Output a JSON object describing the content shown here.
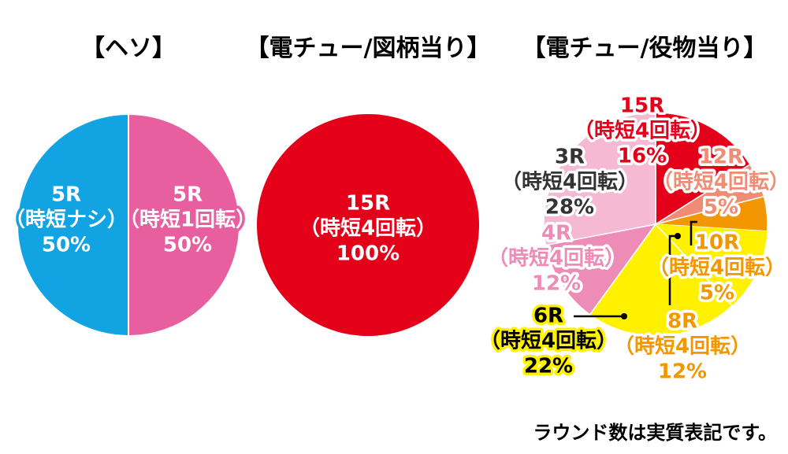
{
  "titles": {
    "heso": "【ヘソ】",
    "denchu_zugara": "【電チュー/図柄当り】",
    "denchu_yakumono": "【電チュー/役物当り】"
  },
  "footnote": "ラウンド数は実質表記です。",
  "colors": {
    "blue": "#12a3e3",
    "pink": "#e85fa0",
    "red": "#e5001a",
    "salmon": "#f08c74",
    "orange": "#f39700",
    "yellow": "#fff100",
    "light_pink": "#f5b9d3",
    "mid_pink": "#ec8cb7"
  },
  "chart_data": [
    {
      "type": "pie",
      "title": "【ヘソ】",
      "slices": [
        {
          "label": "5R",
          "sub": "（時短ナシ）",
          "pct": "50%",
          "value": 50,
          "color": "blue"
        },
        {
          "label": "5R",
          "sub": "（時短1回転）",
          "pct": "50%",
          "value": 50,
          "color": "pink"
        }
      ]
    },
    {
      "type": "pie",
      "title": "【電チュー/図柄当り】",
      "slices": [
        {
          "label": "15R",
          "sub": "（時短4回転）",
          "pct": "100%",
          "value": 100,
          "color": "red"
        }
      ]
    },
    {
      "type": "pie",
      "title": "【電チュー/役物当り】",
      "slices": [
        {
          "label": "15R",
          "sub": "（時短4回転）",
          "pct": "16%",
          "value": 16,
          "color": "red"
        },
        {
          "label": "12R",
          "sub": "（時短4回転）",
          "pct": "5%",
          "value": 5,
          "color": "salmon"
        },
        {
          "label": "10R",
          "sub": "（時短4回転）",
          "pct": "5%",
          "value": 5,
          "color": "orange"
        },
        {
          "label": "8R",
          "sub": "（時短4回転）",
          "pct": "12%",
          "value": 12,
          "color": "yellow"
        },
        {
          "label": "6R",
          "sub": "（時短4回転）",
          "pct": "22%",
          "value": 22,
          "color": "yellow"
        },
        {
          "label": "4R",
          "sub": "（時短4回転）",
          "pct": "12%",
          "value": 12,
          "color": "mid_pink"
        },
        {
          "label": "3R",
          "sub": "（時短4回転）",
          "pct": "28%",
          "value": 28,
          "color": "light_pink"
        }
      ]
    }
  ]
}
